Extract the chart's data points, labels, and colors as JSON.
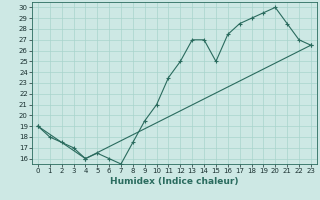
{
  "title": "",
  "xlabel": "Humidex (Indice chaleur)",
  "bg_color": "#cde8e4",
  "line_color": "#2a6b5e",
  "xlim": [
    -0.5,
    23.5
  ],
  "ylim": [
    15.5,
    30.5
  ],
  "xticks": [
    0,
    1,
    2,
    3,
    4,
    5,
    6,
    7,
    8,
    9,
    10,
    11,
    12,
    13,
    14,
    15,
    16,
    17,
    18,
    19,
    20,
    21,
    22,
    23
  ],
  "yticks": [
    16,
    17,
    18,
    19,
    20,
    21,
    22,
    23,
    24,
    25,
    26,
    27,
    28,
    29,
    30
  ],
  "series1_x": [
    0,
    1,
    2,
    3,
    4,
    5,
    6,
    7,
    8,
    9,
    10,
    11,
    12,
    13,
    14,
    15,
    16,
    17,
    18,
    19,
    20,
    21,
    22,
    23
  ],
  "series1_y": [
    19,
    18,
    17.5,
    17,
    16,
    16.5,
    16,
    15.5,
    17.5,
    19.5,
    21,
    23.5,
    25,
    27,
    27,
    25,
    27.5,
    28.5,
    29,
    29.5,
    30,
    28.5,
    27,
    26.5
  ],
  "series2_x": [
    0,
    4,
    23
  ],
  "series2_y": [
    19,
    16,
    26.5
  ],
  "grid_color": "#a8d4cc",
  "tick_fontsize": 5.0,
  "xlabel_fontsize": 6.5
}
